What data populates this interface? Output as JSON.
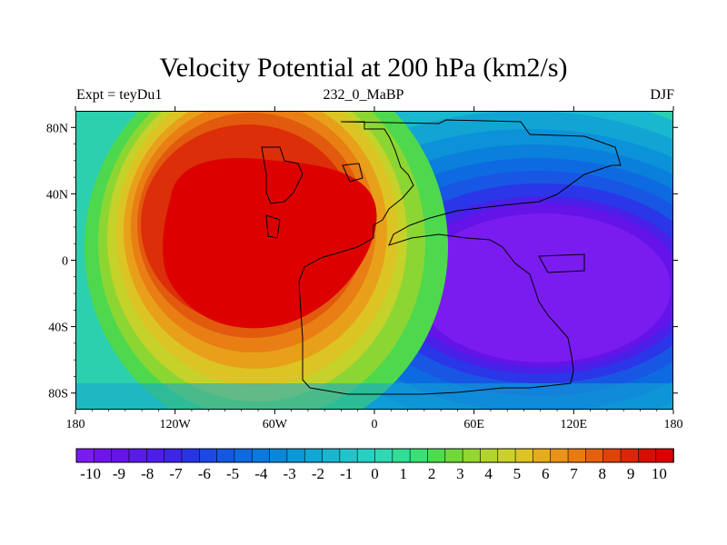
{
  "plot": {
    "title": "Velocity Potential at 200 hPa (km2/s)",
    "left_label": "Expt = teyDu1",
    "center_label": "232_0_MaBP",
    "right_label": "DJF"
  },
  "chart_data": {
    "type": "heatmap",
    "variable": "velocity potential",
    "units": "km2/s",
    "level": "200 hPa",
    "season": "DJF",
    "x_range": [
      -180,
      180
    ],
    "y_range": [
      -90,
      90
    ],
    "x_ticks": [
      {
        "value": -180,
        "label": "180"
      },
      {
        "value": -120,
        "label": "120W"
      },
      {
        "value": -60,
        "label": "60W"
      },
      {
        "value": 0,
        "label": "0"
      },
      {
        "value": 60,
        "label": "60E"
      },
      {
        "value": 120,
        "label": "120E"
      },
      {
        "value": 180,
        "label": "180"
      }
    ],
    "y_ticks": [
      {
        "value": 80,
        "label": "80N"
      },
      {
        "value": 40,
        "label": "40N"
      },
      {
        "value": 0,
        "label": "0"
      },
      {
        "value": -40,
        "label": "40S"
      },
      {
        "value": -80,
        "label": "80S"
      }
    ],
    "colorbar": {
      "min": -10.5,
      "max": 10.5,
      "step": 0.5,
      "labels": [
        "-10",
        "-9",
        "-8",
        "-7",
        "-6",
        "-5",
        "-4",
        "-3",
        "-2",
        "-1",
        "0",
        "1",
        "2",
        "3",
        "4",
        "5",
        "6",
        "7",
        "8",
        "9",
        "10"
      ],
      "colors": [
        "#7a1cf0",
        "#6f14ee",
        "#6414e8",
        "#5a1ae8",
        "#4e1ee8",
        "#3c24e8",
        "#2834e8",
        "#1c48e6",
        "#1458e2",
        "#0e6ae0",
        "#0a78dc",
        "#0a88d8",
        "#0c98d6",
        "#12a6d4",
        "#1ab6d0",
        "#22c4cc",
        "#28d0c4",
        "#2ed8b4",
        "#30de98",
        "#38e076",
        "#4edc4e",
        "#72d83a",
        "#94d632",
        "#b2d42c",
        "#cad228",
        "#dcc424",
        "#e4ac1e",
        "#e89418",
        "#e87a12",
        "#e4600e",
        "#e0420a",
        "#dc2608",
        "#d80e04",
        "#dd0000"
      ]
    },
    "centers": [
      {
        "name": "upper-level divergence minimum",
        "lon": 95,
        "lat": -10,
        "value": -10
      },
      {
        "name": "upper-level convergence maximum",
        "lon": -85,
        "lat": 30,
        "value": 10
      }
    ]
  }
}
